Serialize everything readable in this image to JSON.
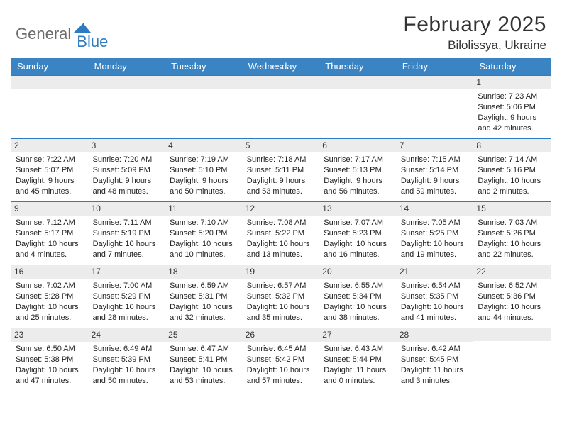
{
  "brand": {
    "word1": "General",
    "word2": "Blue"
  },
  "title": "February 2025",
  "location": "Bilolissya, Ukraine",
  "colors": {
    "header_bg": "#3b84c4",
    "header_text": "#ffffff",
    "rule": "#2f7bbf",
    "daynum_bg": "#ececec",
    "text": "#222222",
    "brand_gray": "#6b6b6b",
    "brand_blue": "#2f7bbf"
  },
  "day_headers": [
    "Sunday",
    "Monday",
    "Tuesday",
    "Wednesday",
    "Thursday",
    "Friday",
    "Saturday"
  ],
  "weeks": [
    [
      {
        "n": "",
        "lines": []
      },
      {
        "n": "",
        "lines": []
      },
      {
        "n": "",
        "lines": []
      },
      {
        "n": "",
        "lines": []
      },
      {
        "n": "",
        "lines": []
      },
      {
        "n": "",
        "lines": []
      },
      {
        "n": "1",
        "lines": [
          "Sunrise: 7:23 AM",
          "Sunset: 5:06 PM",
          "Daylight: 9 hours and 42 minutes."
        ]
      }
    ],
    [
      {
        "n": "2",
        "lines": [
          "Sunrise: 7:22 AM",
          "Sunset: 5:07 PM",
          "Daylight: 9 hours and 45 minutes."
        ]
      },
      {
        "n": "3",
        "lines": [
          "Sunrise: 7:20 AM",
          "Sunset: 5:09 PM",
          "Daylight: 9 hours and 48 minutes."
        ]
      },
      {
        "n": "4",
        "lines": [
          "Sunrise: 7:19 AM",
          "Sunset: 5:10 PM",
          "Daylight: 9 hours and 50 minutes."
        ]
      },
      {
        "n": "5",
        "lines": [
          "Sunrise: 7:18 AM",
          "Sunset: 5:11 PM",
          "Daylight: 9 hours and 53 minutes."
        ]
      },
      {
        "n": "6",
        "lines": [
          "Sunrise: 7:17 AM",
          "Sunset: 5:13 PM",
          "Daylight: 9 hours and 56 minutes."
        ]
      },
      {
        "n": "7",
        "lines": [
          "Sunrise: 7:15 AM",
          "Sunset: 5:14 PM",
          "Daylight: 9 hours and 59 minutes."
        ]
      },
      {
        "n": "8",
        "lines": [
          "Sunrise: 7:14 AM",
          "Sunset: 5:16 PM",
          "Daylight: 10 hours and 2 minutes."
        ]
      }
    ],
    [
      {
        "n": "9",
        "lines": [
          "Sunrise: 7:12 AM",
          "Sunset: 5:17 PM",
          "Daylight: 10 hours and 4 minutes."
        ]
      },
      {
        "n": "10",
        "lines": [
          "Sunrise: 7:11 AM",
          "Sunset: 5:19 PM",
          "Daylight: 10 hours and 7 minutes."
        ]
      },
      {
        "n": "11",
        "lines": [
          "Sunrise: 7:10 AM",
          "Sunset: 5:20 PM",
          "Daylight: 10 hours and 10 minutes."
        ]
      },
      {
        "n": "12",
        "lines": [
          "Sunrise: 7:08 AM",
          "Sunset: 5:22 PM",
          "Daylight: 10 hours and 13 minutes."
        ]
      },
      {
        "n": "13",
        "lines": [
          "Sunrise: 7:07 AM",
          "Sunset: 5:23 PM",
          "Daylight: 10 hours and 16 minutes."
        ]
      },
      {
        "n": "14",
        "lines": [
          "Sunrise: 7:05 AM",
          "Sunset: 5:25 PM",
          "Daylight: 10 hours and 19 minutes."
        ]
      },
      {
        "n": "15",
        "lines": [
          "Sunrise: 7:03 AM",
          "Sunset: 5:26 PM",
          "Daylight: 10 hours and 22 minutes."
        ]
      }
    ],
    [
      {
        "n": "16",
        "lines": [
          "Sunrise: 7:02 AM",
          "Sunset: 5:28 PM",
          "Daylight: 10 hours and 25 minutes."
        ]
      },
      {
        "n": "17",
        "lines": [
          "Sunrise: 7:00 AM",
          "Sunset: 5:29 PM",
          "Daylight: 10 hours and 28 minutes."
        ]
      },
      {
        "n": "18",
        "lines": [
          "Sunrise: 6:59 AM",
          "Sunset: 5:31 PM",
          "Daylight: 10 hours and 32 minutes."
        ]
      },
      {
        "n": "19",
        "lines": [
          "Sunrise: 6:57 AM",
          "Sunset: 5:32 PM",
          "Daylight: 10 hours and 35 minutes."
        ]
      },
      {
        "n": "20",
        "lines": [
          "Sunrise: 6:55 AM",
          "Sunset: 5:34 PM",
          "Daylight: 10 hours and 38 minutes."
        ]
      },
      {
        "n": "21",
        "lines": [
          "Sunrise: 6:54 AM",
          "Sunset: 5:35 PM",
          "Daylight: 10 hours and 41 minutes."
        ]
      },
      {
        "n": "22",
        "lines": [
          "Sunrise: 6:52 AM",
          "Sunset: 5:36 PM",
          "Daylight: 10 hours and 44 minutes."
        ]
      }
    ],
    [
      {
        "n": "23",
        "lines": [
          "Sunrise: 6:50 AM",
          "Sunset: 5:38 PM",
          "Daylight: 10 hours and 47 minutes."
        ]
      },
      {
        "n": "24",
        "lines": [
          "Sunrise: 6:49 AM",
          "Sunset: 5:39 PM",
          "Daylight: 10 hours and 50 minutes."
        ]
      },
      {
        "n": "25",
        "lines": [
          "Sunrise: 6:47 AM",
          "Sunset: 5:41 PM",
          "Daylight: 10 hours and 53 minutes."
        ]
      },
      {
        "n": "26",
        "lines": [
          "Sunrise: 6:45 AM",
          "Sunset: 5:42 PM",
          "Daylight: 10 hours and 57 minutes."
        ]
      },
      {
        "n": "27",
        "lines": [
          "Sunrise: 6:43 AM",
          "Sunset: 5:44 PM",
          "Daylight: 11 hours and 0 minutes."
        ]
      },
      {
        "n": "28",
        "lines": [
          "Sunrise: 6:42 AM",
          "Sunset: 5:45 PM",
          "Daylight: 11 hours and 3 minutes."
        ]
      },
      {
        "n": "",
        "lines": []
      }
    ]
  ]
}
